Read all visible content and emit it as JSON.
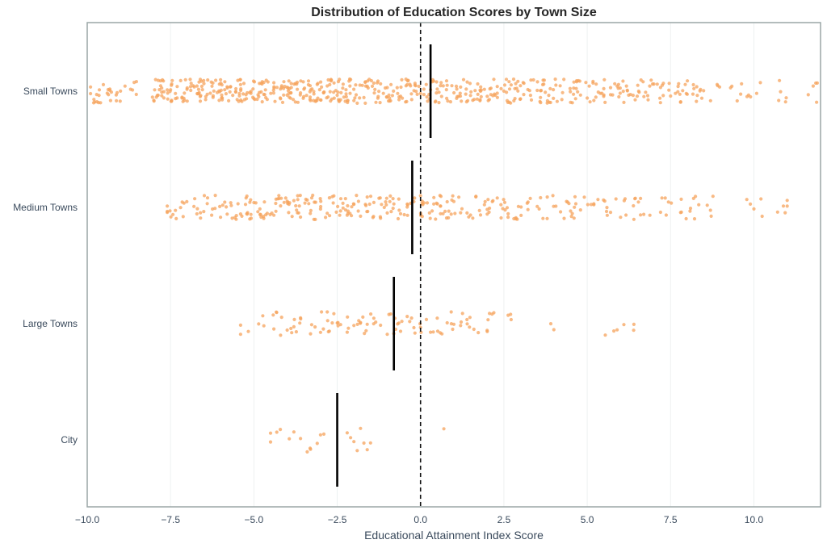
{
  "chart_data": {
    "type": "scatter",
    "title": "Distribution of Education Scores by Town Size",
    "xlabel": "Educational Attainment Index Score",
    "ylabel": "",
    "xlim": [
      -10,
      12
    ],
    "xticks": [
      -10.0,
      -7.5,
      -5.0,
      -2.5,
      0.0,
      2.5,
      5.0,
      7.5,
      10.0
    ],
    "xtick_labels": [
      "−10.0",
      "−7.5",
      "−5.0",
      "−2.5",
      "0.0",
      "2.5",
      "5.0",
      "7.5",
      "10.0"
    ],
    "categories": [
      "Small Towns",
      "Medium Towns",
      "Large Towns",
      "City"
    ],
    "reference_line": {
      "x": 0,
      "style": "dashed",
      "color": "#111111"
    },
    "grid": "vertical",
    "point_color": "#f5a35c",
    "median_color": "#000000",
    "series": [
      {
        "name": "Small Towns",
        "median": 0.3,
        "n_points": 620,
        "range": [
          -9.9,
          11.9
        ],
        "points": [
          -9.9,
          -9.6,
          -9.4,
          -9.3,
          -8.7,
          -8.0,
          -7.8,
          -7.7,
          -7.6,
          -7.5,
          -7.3,
          -7.1,
          -7.0,
          -6.9,
          -6.7,
          -6.5,
          -6.4,
          -6.2,
          -6.1,
          -6.0,
          -5.8,
          -5.7,
          -5.5,
          -5.4,
          -5.3,
          -5.2,
          -5.0,
          -4.9,
          -4.7,
          -4.6,
          -4.4,
          -4.2,
          -4.1,
          -4.0,
          -3.9,
          -3.7,
          -3.6,
          -3.5,
          -3.3,
          -3.2,
          -3.1,
          -3.0,
          -2.8,
          -2.7,
          -2.5,
          -2.4,
          -2.3,
          -2.1,
          -2.0,
          -1.9,
          -1.7,
          -1.6,
          -1.4,
          -1.3,
          -1.2,
          -1.0,
          -0.9,
          -0.7,
          -0.6,
          -0.4,
          -0.3,
          -0.1,
          0.0,
          0.1,
          0.3,
          0.5,
          0.6,
          0.8,
          0.9,
          1.1,
          1.2,
          1.4,
          1.5,
          1.7,
          1.8,
          2.0,
          2.2,
          2.3,
          2.5,
          2.7,
          2.8,
          3.0,
          3.1,
          3.3,
          3.5,
          3.6,
          3.8,
          3.9,
          4.1,
          4.3,
          4.5,
          4.6,
          4.8,
          5.0,
          5.2,
          5.5,
          5.7,
          5.9,
          6.1,
          6.3,
          6.5,
          6.7,
          7.0,
          7.2,
          7.5,
          7.8,
          8.0,
          8.2,
          8.4,
          8.7,
          9.5,
          9.9,
          10.8,
          11.9
        ]
      },
      {
        "name": "Medium Towns",
        "median": -0.25,
        "n_points": 330,
        "range": [
          -7.6,
          11.0
        ],
        "points": [
          -7.6,
          -7.2,
          -6.8,
          -6.4,
          -6.0,
          -5.8,
          -5.4,
          -5.2,
          -5.0,
          -4.8,
          -4.6,
          -4.4,
          -4.2,
          -4.0,
          -3.8,
          -3.6,
          -3.4,
          -3.2,
          -3.0,
          -2.8,
          -2.6,
          -2.4,
          -2.2,
          -2.0,
          -1.8,
          -1.6,
          -1.4,
          -1.2,
          -1.0,
          -0.8,
          -0.6,
          -0.4,
          -0.2,
          0.0,
          0.2,
          0.4,
          0.6,
          0.8,
          1.0,
          1.2,
          1.5,
          1.8,
          2.0,
          2.3,
          2.6,
          2.9,
          3.2,
          3.5,
          3.8,
          4.2,
          4.5,
          4.8,
          5.2,
          5.6,
          6.0,
          6.4,
          6.6,
          7.2,
          7.8,
          8.1,
          8.6,
          10.0,
          11.0
        ]
      },
      {
        "name": "Large Towns",
        "median": -0.8,
        "n_points": 110,
        "range": [
          -5.4,
          6.4
        ],
        "points": [
          -5.4,
          -4.7,
          -4.4,
          -4.2,
          -4.0,
          -3.8,
          -3.6,
          -3.3,
          -3.0,
          -2.8,
          -2.6,
          -2.4,
          -2.2,
          -2.0,
          -1.8,
          -1.6,
          -1.4,
          -1.2,
          -1.0,
          -0.8,
          -0.6,
          -0.4,
          -0.2,
          0.0,
          0.3,
          0.5,
          0.8,
          1.0,
          1.2,
          1.4,
          1.6,
          2.0,
          2.2,
          2.7,
          4.0,
          5.8,
          6.1,
          6.4
        ]
      },
      {
        "name": "City",
        "median": -2.5,
        "n_points": 22,
        "range": [
          -4.5,
          0.7
        ],
        "points": [
          -4.5,
          -4.5,
          -3.8,
          -3.6,
          -3.4,
          -3.3,
          -3.1,
          -3.0,
          -2.9,
          -2.2,
          -2.1,
          -2.0,
          -1.9,
          -1.8,
          -1.7,
          -1.6,
          -1.5,
          0.7
        ]
      }
    ]
  }
}
